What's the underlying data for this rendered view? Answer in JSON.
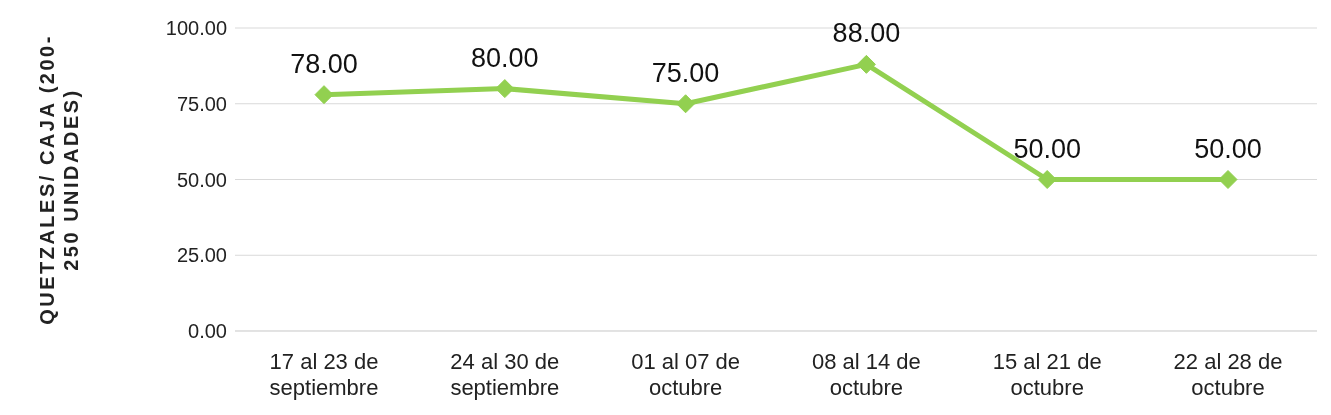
{
  "chart_data": {
    "type": "line",
    "ylabel": "QUETZALES/ CAJA (200-250 UNIDADES)",
    "categories": [
      "17 al 23 de septiembre",
      "24 al 30 de septiembre",
      "01 al 07 de octubre",
      "08 al 14 de octubre",
      "15 al 21 de octubre",
      "22 al 28 de octubre"
    ],
    "series": [
      {
        "color": "#92d050",
        "values": [
          78,
          80,
          75,
          88,
          50,
          50
        ],
        "value_labels": [
          "78.00",
          "80.00",
          "75.00",
          "88.00",
          "50.00",
          "50.00"
        ]
      }
    ],
    "ylim": [
      0,
      100
    ],
    "yticks": [
      {
        "value": 0,
        "label": "0.00"
      },
      {
        "value": 25,
        "label": "25.00"
      },
      {
        "value": 50,
        "label": "50.00"
      },
      {
        "value": 75,
        "label": "75.00"
      },
      {
        "value": 100,
        "label": "100.00"
      }
    ],
    "grid": "y",
    "legend": false,
    "marker": "diamond",
    "line_style": "solid"
  }
}
